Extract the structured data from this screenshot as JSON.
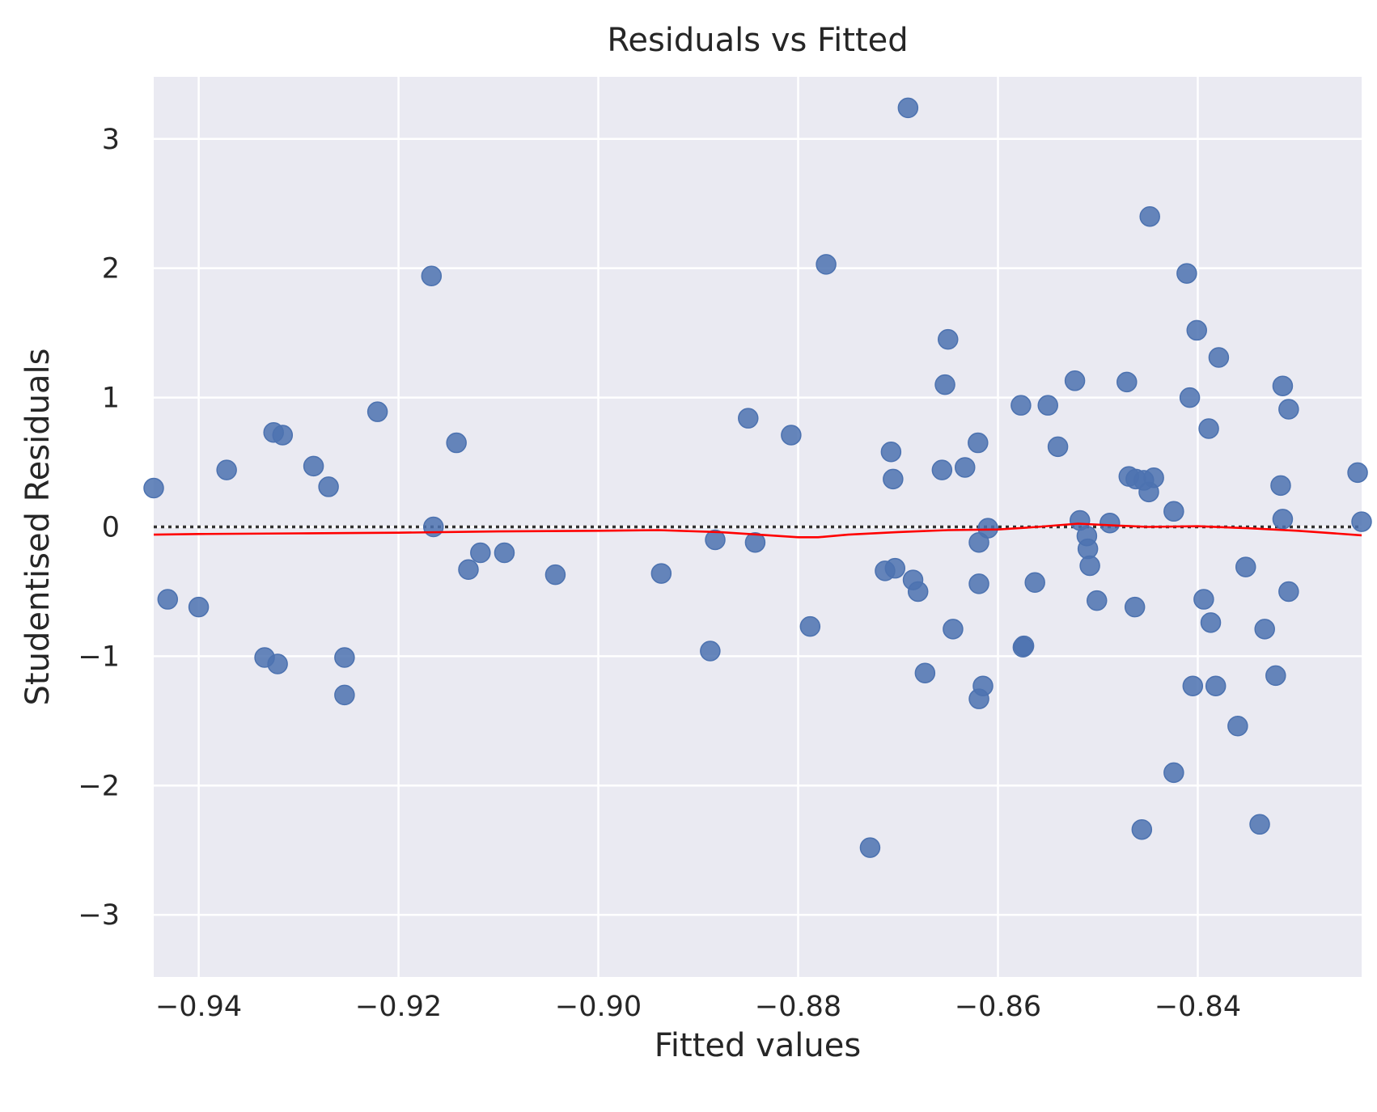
{
  "chart_data": {
    "type": "scatter",
    "title": "Residuals vs Fitted",
    "xlabel": "Fitted values",
    "ylabel": "Studentised Residuals",
    "xlim": [
      -0.9445,
      -0.8236
    ],
    "ylim": [
      -3.48,
      3.48
    ],
    "xticks": [
      -0.94,
      -0.92,
      -0.9,
      -0.88,
      -0.86,
      -0.84
    ],
    "xtick_labels": [
      "−0.94",
      "−0.92",
      "−0.90",
      "−0.88",
      "−0.86",
      "−0.84"
    ],
    "yticks": [
      3,
      2,
      1,
      0,
      -1,
      -2,
      -3
    ],
    "ytick_labels": [
      "3",
      "2",
      "1",
      "0",
      "−1",
      "−2",
      "−3"
    ],
    "grid": true,
    "background": "#eaeaf2",
    "grid_color": "#ffffff",
    "point_color": "#4c72b0",
    "lowess_color": "#ff0000",
    "reference_line_color": "#333333",
    "reference_y": 0,
    "points": [
      {
        "x": -0.9445,
        "y": 0.3
      },
      {
        "x": -0.9431,
        "y": -0.56
      },
      {
        "x": -0.94,
        "y": -0.62
      },
      {
        "x": -0.9372,
        "y": 0.44
      },
      {
        "x": -0.9334,
        "y": -1.01
      },
      {
        "x": -0.9325,
        "y": 0.73
      },
      {
        "x": -0.9321,
        "y": -1.06
      },
      {
        "x": -0.9316,
        "y": 0.71
      },
      {
        "x": -0.9285,
        "y": 0.47
      },
      {
        "x": -0.927,
        "y": 0.31
      },
      {
        "x": -0.9254,
        "y": -1.01
      },
      {
        "x": -0.9254,
        "y": -1.3
      },
      {
        "x": -0.9221,
        "y": 0.89
      },
      {
        "x": -0.9167,
        "y": 1.94
      },
      {
        "x": -0.9165,
        "y": 0.0
      },
      {
        "x": -0.9142,
        "y": 0.65
      },
      {
        "x": -0.913,
        "y": -0.33
      },
      {
        "x": -0.9118,
        "y": -0.2
      },
      {
        "x": -0.9094,
        "y": -0.2
      },
      {
        "x": -0.9043,
        "y": -0.37
      },
      {
        "x": -0.8937,
        "y": -0.36
      },
      {
        "x": -0.8888,
        "y": -0.96
      },
      {
        "x": -0.8883,
        "y": -0.1
      },
      {
        "x": -0.885,
        "y": 0.84
      },
      {
        "x": -0.8843,
        "y": -0.12
      },
      {
        "x": -0.8807,
        "y": 0.71
      },
      {
        "x": -0.8788,
        "y": -0.77
      },
      {
        "x": -0.8772,
        "y": 2.03
      },
      {
        "x": -0.8728,
        "y": -2.48
      },
      {
        "x": -0.8713,
        "y": -0.34
      },
      {
        "x": -0.8707,
        "y": 0.58
      },
      {
        "x": -0.8705,
        "y": 0.37
      },
      {
        "x": -0.8703,
        "y": -0.32
      },
      {
        "x": -0.869,
        "y": 3.24
      },
      {
        "x": -0.8685,
        "y": -0.41
      },
      {
        "x": -0.868,
        "y": -0.5
      },
      {
        "x": -0.8673,
        "y": -1.13
      },
      {
        "x": -0.8656,
        "y": 0.44
      },
      {
        "x": -0.8653,
        "y": 1.1
      },
      {
        "x": -0.865,
        "y": 1.45
      },
      {
        "x": -0.8645,
        "y": -0.79
      },
      {
        "x": -0.8633,
        "y": 0.46
      },
      {
        "x": -0.862,
        "y": 0.65
      },
      {
        "x": -0.8619,
        "y": -0.12
      },
      {
        "x": -0.8619,
        "y": -0.44
      },
      {
        "x": -0.8619,
        "y": -1.33
      },
      {
        "x": -0.8615,
        "y": -1.23
      },
      {
        "x": -0.861,
        "y": -0.01
      },
      {
        "x": -0.8577,
        "y": 0.94
      },
      {
        "x": -0.8575,
        "y": -0.93
      },
      {
        "x": -0.8574,
        "y": -0.92
      },
      {
        "x": -0.8563,
        "y": -0.43
      },
      {
        "x": -0.855,
        "y": 0.94
      },
      {
        "x": -0.854,
        "y": 0.62
      },
      {
        "x": -0.8523,
        "y": 1.13
      },
      {
        "x": -0.8518,
        "y": 0.05
      },
      {
        "x": -0.8511,
        "y": -0.07
      },
      {
        "x": -0.851,
        "y": -0.17
      },
      {
        "x": -0.8508,
        "y": -0.3
      },
      {
        "x": -0.8501,
        "y": -0.57
      },
      {
        "x": -0.8488,
        "y": 0.03
      },
      {
        "x": -0.8471,
        "y": 1.12
      },
      {
        "x": -0.8469,
        "y": 0.39
      },
      {
        "x": -0.8462,
        "y": 0.37
      },
      {
        "x": -0.8463,
        "y": -0.62
      },
      {
        "x": -0.8456,
        "y": -2.34
      },
      {
        "x": -0.8454,
        "y": 0.36
      },
      {
        "x": -0.8449,
        "y": 0.27
      },
      {
        "x": -0.8448,
        "y": 2.4
      },
      {
        "x": -0.8444,
        "y": 0.38
      },
      {
        "x": -0.8424,
        "y": 0.12
      },
      {
        "x": -0.8424,
        "y": -1.9
      },
      {
        "x": -0.8411,
        "y": 1.96
      },
      {
        "x": -0.8408,
        "y": 1.0
      },
      {
        "x": -0.8405,
        "y": -1.23
      },
      {
        "x": -0.8401,
        "y": 1.52
      },
      {
        "x": -0.8394,
        "y": -0.56
      },
      {
        "x": -0.8389,
        "y": 0.76
      },
      {
        "x": -0.8387,
        "y": -0.74
      },
      {
        "x": -0.8382,
        "y": -1.23
      },
      {
        "x": -0.8379,
        "y": 1.31
      },
      {
        "x": -0.836,
        "y": -1.54
      },
      {
        "x": -0.8352,
        "y": -0.31
      },
      {
        "x": -0.8338,
        "y": -2.3
      },
      {
        "x": -0.8333,
        "y": -0.79
      },
      {
        "x": -0.8322,
        "y": -1.15
      },
      {
        "x": -0.8317,
        "y": 0.32
      },
      {
        "x": -0.8315,
        "y": 1.09
      },
      {
        "x": -0.8315,
        "y": 0.06
      },
      {
        "x": -0.8309,
        "y": 0.91
      },
      {
        "x": -0.8309,
        "y": -0.5
      },
      {
        "x": -0.824,
        "y": 0.42
      },
      {
        "x": -0.8236,
        "y": 0.04
      }
    ],
    "lowess": [
      {
        "x": -0.9445,
        "y": -0.06
      },
      {
        "x": -0.94,
        "y": -0.055
      },
      {
        "x": -0.93,
        "y": -0.05
      },
      {
        "x": -0.92,
        "y": -0.045
      },
      {
        "x": -0.91,
        "y": -0.035
      },
      {
        "x": -0.9,
        "y": -0.03
      },
      {
        "x": -0.894,
        "y": -0.025
      },
      {
        "x": -0.888,
        "y": -0.04
      },
      {
        "x": -0.884,
        "y": -0.06
      },
      {
        "x": -0.88,
        "y": -0.08
      },
      {
        "x": -0.878,
        "y": -0.08
      },
      {
        "x": -0.875,
        "y": -0.06
      },
      {
        "x": -0.87,
        "y": -0.04
      },
      {
        "x": -0.865,
        "y": -0.025
      },
      {
        "x": -0.86,
        "y": -0.02
      },
      {
        "x": -0.856,
        "y": 0.0
      },
      {
        "x": -0.852,
        "y": 0.025
      },
      {
        "x": -0.848,
        "y": 0.01
      },
      {
        "x": -0.845,
        "y": 0.0
      },
      {
        "x": -0.84,
        "y": 0.005
      },
      {
        "x": -0.835,
        "y": -0.01
      },
      {
        "x": -0.83,
        "y": -0.03
      },
      {
        "x": -0.8236,
        "y": -0.065
      }
    ]
  }
}
